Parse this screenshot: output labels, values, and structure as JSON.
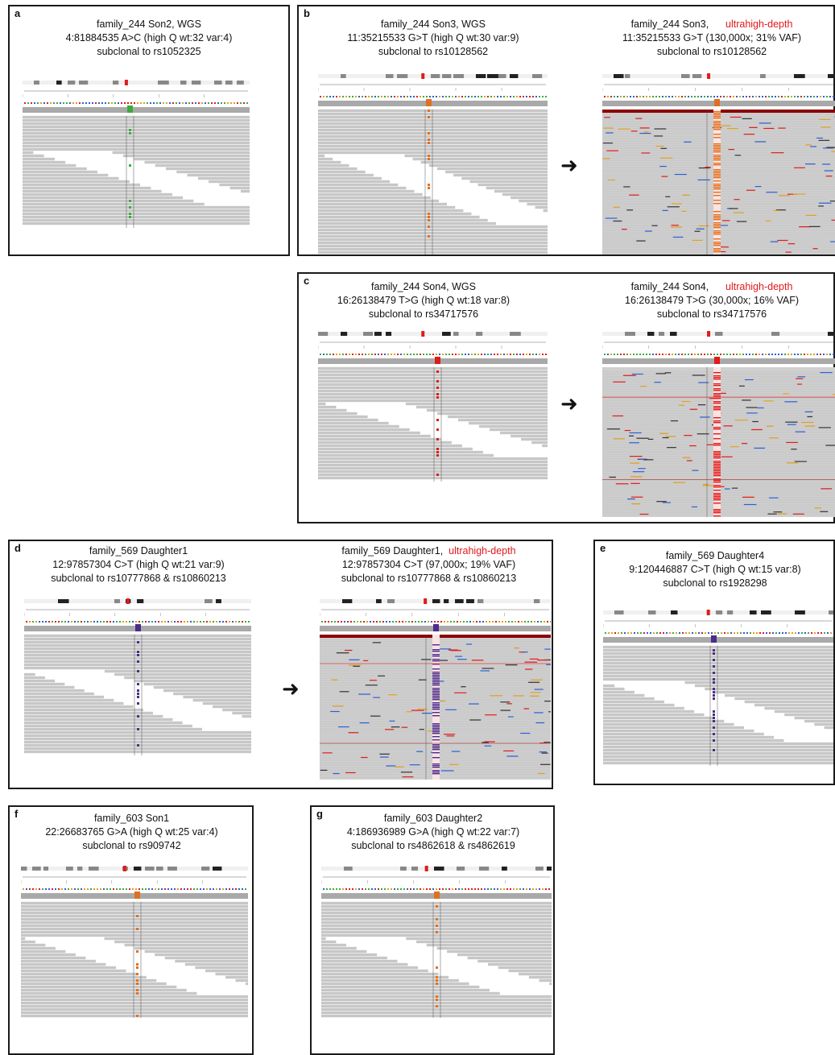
{
  "colors": {
    "accent_red": "#e0191b",
    "read_gray": "#c8c8c8",
    "read_line": "#bbbbbb",
    "variant_green": "#3caa3c",
    "variant_orange": "#e07020",
    "variant_red": "#e01b1b",
    "variant_purple": "#4b2c8a"
  },
  "panels": [
    {
      "letter": "a",
      "captions": [
        {
          "line1": "family_244 Son2, WGS",
          "line2": "4:81884535 A>C (high Q wt:32 var:4)",
          "line3": "subclonal to rs1052325",
          "tag": ""
        }
      ]
    },
    {
      "letter": "b",
      "captions": [
        {
          "line1": "family_244 Son3, WGS",
          "line2": "11:35215533 G>T (high Q wt:30 var:9)",
          "line3": "subclonal to rs10128562",
          "tag": ""
        },
        {
          "line1": "family_244 Son3,",
          "line2": "11:35215533 G>T (130,000x; 31% VAF)",
          "line3": "subclonal to rs10128562",
          "tag": "ultrahigh-depth"
        }
      ]
    },
    {
      "letter": "c",
      "captions": [
        {
          "line1": "family_244 Son4, WGS",
          "line2": "16:26138479 T>G (high Q wt:18 var:8)",
          "line3": "subclonal to rs34717576",
          "tag": ""
        },
        {
          "line1": "family_244 Son4,",
          "line2": "16:26138479 T>G (30,000x; 16% VAF)",
          "line3": "subclonal to rs34717576",
          "tag": "ultrahigh-depth"
        }
      ]
    },
    {
      "letter": "d",
      "captions": [
        {
          "line1": "family_569 Daughter1",
          "line2": "12:97857304 C>T (high Q wt:21 var:9)",
          "line3": "subclonal to rs10777868 & rs10860213",
          "tag": ""
        },
        {
          "line1": "family_569 Daughter1,",
          "line2": "12:97857304 C>T (97,000x; 19% VAF)",
          "line3": "subclonal to rs10777868 & rs10860213",
          "tag": "ultrahigh-depth"
        }
      ]
    },
    {
      "letter": "e",
      "captions": [
        {
          "line1": "family_569 Daughter4",
          "line2": "9:120446887 C>T (high Q wt:15 var:8)",
          "line3": "subclonal to rs1928298",
          "tag": ""
        }
      ]
    },
    {
      "letter": "f",
      "captions": [
        {
          "line1": "family_603 Son1",
          "line2": "22:26683765 G>A (high Q wt:25 var:4)",
          "line3": "subclonal to rs909742",
          "tag": ""
        }
      ]
    },
    {
      "letter": "g",
      "captions": [
        {
          "line1": "family_603 Daughter2",
          "line2": "4:186936989 G>A (high Q wt:22 var:7)",
          "line3": "subclonal to rs4862618 & rs4862619",
          "tag": ""
        }
      ]
    }
  ],
  "arrow_glyph": "➜"
}
